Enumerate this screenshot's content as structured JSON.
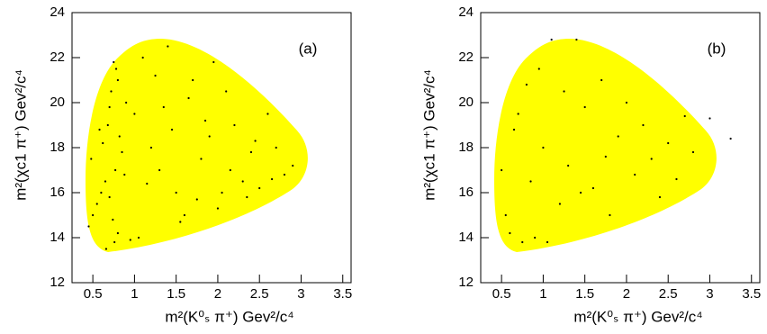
{
  "chart_data": [
    {
      "type": "scatter",
      "annotation": "(a)",
      "xlabel": "m²(K⁰ₛ π⁺) Gev²/c⁴",
      "ylabel": "m²(χc1 π⁺) Gev²/c⁴",
      "color": "#000000",
      "fill_color": "#ffff00",
      "xlim": [
        0.25,
        3.6
      ],
      "ylim": [
        12,
        24
      ],
      "xticks": [
        0.5,
        1,
        1.5,
        2,
        2.5,
        3,
        3.5
      ],
      "yticks": [
        12,
        14,
        16,
        18,
        20,
        22,
        24
      ],
      "x": [
        0.75,
        0.78,
        0.8,
        0.72,
        0.7,
        0.68,
        0.82,
        0.85,
        0.77,
        0.65,
        0.6,
        0.55,
        0.5,
        0.45,
        0.48,
        0.62,
        0.8,
        0.76,
        0.74,
        0.7,
        0.9,
        1.0,
        1.1,
        1.2,
        1.3,
        1.4,
        1.5,
        1.6,
        1.7,
        1.8,
        1.9,
        2.0,
        2.1,
        2.2,
        2.3,
        2.4,
        2.5,
        2.6,
        2.7,
        2.8,
        2.9,
        1.05,
        1.15,
        1.25,
        1.35,
        1.55,
        1.75,
        1.95,
        2.15,
        2.35,
        0.95,
        0.88,
        1.45,
        1.65,
        1.85,
        2.05,
        2.45,
        2.65,
        0.58,
        0.66
      ],
      "y": [
        21.8,
        21.5,
        21.0,
        20.5,
        19.8,
        19.0,
        18.5,
        17.8,
        17.0,
        16.5,
        16.0,
        15.5,
        15.0,
        14.5,
        17.5,
        18.2,
        14.2,
        13.8,
        14.8,
        15.8,
        20.0,
        19.5,
        22.0,
        18.0,
        17.0,
        22.5,
        16.0,
        15.0,
        21.0,
        17.5,
        18.5,
        15.3,
        20.5,
        19.0,
        16.5,
        17.8,
        16.2,
        19.5,
        18.0,
        16.8,
        17.2,
        14.0,
        16.4,
        21.2,
        19.8,
        14.7,
        15.7,
        21.8,
        17.0,
        15.8,
        13.9,
        16.8,
        18.8,
        20.2,
        19.2,
        16.0,
        18.3,
        16.6,
        18.8,
        13.5
      ]
    },
    {
      "type": "scatter",
      "annotation": "(b)",
      "xlabel": "m²(K⁰ₛ π⁺) Gev²/c⁴",
      "ylabel": "m²(χc1 π⁺) Gev²/c⁴",
      "color": "#000000",
      "fill_color": "#ffff00",
      "xlim": [
        0.25,
        3.6
      ],
      "ylim": [
        12,
        24
      ],
      "xticks": [
        0.5,
        1,
        1.5,
        2,
        2.5,
        3,
        3.5
      ],
      "yticks": [
        12,
        14,
        16,
        18,
        20,
        22,
        24
      ],
      "x": [
        0.5,
        0.55,
        0.6,
        0.7,
        0.75,
        0.8,
        0.85,
        0.9,
        1.0,
        1.1,
        1.2,
        1.3,
        1.4,
        1.5,
        1.6,
        1.7,
        1.8,
        1.9,
        2.0,
        2.1,
        2.2,
        2.3,
        2.4,
        2.5,
        2.6,
        2.7,
        2.8,
        1.05,
        1.25,
        1.45,
        0.65,
        0.95,
        1.75,
        3.0,
        3.25
      ],
      "y": [
        17.0,
        15.0,
        14.2,
        19.5,
        13.8,
        20.8,
        16.5,
        14.0,
        18.0,
        22.8,
        15.5,
        17.2,
        22.8,
        19.8,
        16.2,
        21.0,
        15.0,
        18.5,
        20.0,
        16.8,
        19.0,
        17.5,
        15.8,
        18.2,
        16.6,
        19.4,
        17.8,
        13.8,
        20.5,
        16.0,
        18.8,
        21.5,
        17.6,
        19.3,
        18.4
      ]
    }
  ]
}
